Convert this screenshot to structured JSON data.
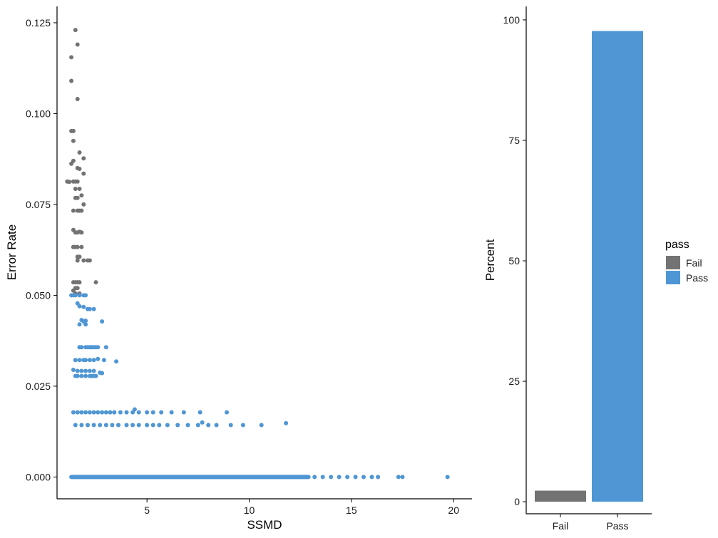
{
  "colors": {
    "fail": "#737373",
    "pass": "#4f96d4",
    "axis": "#000000"
  },
  "chart_data": [
    {
      "type": "scatter",
      "xlabel": "SSMD",
      "ylabel": "Error Rate",
      "xlim": [
        0.6,
        20.9
      ],
      "ylim": [
        -0.006,
        0.1295
      ],
      "x_ticks": [
        5,
        10,
        15,
        20
      ],
      "x_tick_labels": [
        "5",
        "10",
        "15",
        "20"
      ],
      "y_ticks": [
        0.0,
        0.025,
        0.05,
        0.075,
        0.1,
        0.125
      ],
      "y_tick_labels": [
        "0.000",
        "0.025",
        "0.050",
        "0.075",
        "0.100",
        "0.125"
      ],
      "grid": false,
      "series": [
        {
          "name": "Fail",
          "x": [
            1.5,
            1.3,
            1.6,
            1.3,
            1.6,
            1.3,
            1.4,
            1.4,
            1.7,
            1.3,
            1.9,
            1.2,
            1.4,
            1.6,
            1.7,
            1.9,
            1.5,
            1.4,
            1.6,
            1.5,
            1.7,
            1.1,
            1.5,
            1.6,
            1.8,
            1.6,
            1.4,
            1.9,
            1.7,
            1.8,
            1.4,
            1.7,
            1.5,
            1.6,
            1.8,
            1.4,
            1.5,
            1.6,
            1.8,
            1.4,
            1.6,
            1.7,
            1.6,
            1.9,
            2.1,
            2.2,
            1.4,
            1.5,
            1.6,
            1.7,
            1.5,
            1.6,
            2.5,
            1.4,
            1.5,
            1.7
          ],
          "y": [
            0.123,
            0.1155,
            0.119,
            0.109,
            0.104,
            0.0952,
            0.0952,
            0.0925,
            0.0893,
            0.0862,
            0.0877,
            0.0812,
            0.087,
            0.085,
            0.0848,
            0.0835,
            0.0813,
            0.0813,
            0.0813,
            0.0793,
            0.0793,
            0.0813,
            0.0768,
            0.0768,
            0.0775,
            0.0733,
            0.0733,
            0.075,
            0.0733,
            0.0733,
            0.068,
            0.0675,
            0.0673,
            0.0673,
            0.0673,
            0.0633,
            0.0633,
            0.0633,
            0.0633,
            0.0633,
            0.0606,
            0.0606,
            0.0596,
            0.0596,
            0.0596,
            0.0596,
            0.0536,
            0.0536,
            0.0536,
            0.0536,
            0.052,
            0.052,
            0.0536,
            0.0513,
            0.0505,
            0.0505
          ]
        },
        {
          "name": "Pass",
          "x": [
            1.3,
            1.4,
            1.5,
            1.7,
            1.9,
            2.0,
            1.6,
            1.7,
            1.9,
            2.1,
            1.8,
            2.0,
            2.2,
            2.4,
            1.7,
            2.0,
            1.9,
            2.8,
            1.7,
            1.8,
            2.0,
            2.1,
            2.2,
            2.3,
            2.4,
            2.5,
            2.6,
            3.0,
            1.5,
            1.7,
            1.9,
            2.0,
            2.2,
            2.4,
            2.6,
            2.9,
            3.5,
            1.4,
            1.6,
            1.8,
            2.0,
            2.2,
            2.4,
            2.7,
            1.5,
            1.6,
            1.8,
            2.0,
            2.2,
            2.3,
            2.4,
            2.5,
            2.8
          ],
          "y": [
            0.05,
            0.05,
            0.05,
            0.05,
            0.05,
            0.05,
            0.0478,
            0.047,
            0.0468,
            0.0462,
            0.0432,
            0.043,
            0.0462,
            0.0462,
            0.042,
            0.042,
            0.0428,
            0.0428,
            0.0357,
            0.0357,
            0.0357,
            0.0357,
            0.0357,
            0.0357,
            0.0357,
            0.0357,
            0.0357,
            0.0357,
            0.0322,
            0.0322,
            0.0322,
            0.0322,
            0.0322,
            0.0322,
            0.0325,
            0.0322,
            0.0318,
            0.0295,
            0.0292,
            0.0292,
            0.0292,
            0.0292,
            0.0292,
            0.0287,
            0.0278,
            0.0278,
            0.0278,
            0.0278,
            0.0278,
            0.0278,
            0.0278,
            0.0278,
            0.0286
          ],
          "bands": [
            {
              "y": 0.0178,
              "x": [
                1.4,
                1.6,
                1.8,
                2.0,
                2.2,
                2.4,
                2.6,
                2.8,
                3.0,
                3.2,
                3.4,
                3.7,
                4.0,
                4.3,
                4.6,
                5.0,
                5.3,
                5.7,
                6.2,
                6.8,
                7.6,
                8.9
              ],
              "extra": [
                [
                  4.4,
                  0.0186
                ]
              ]
            },
            {
              "y": 0.0143,
              "x": [
                1.5,
                1.8,
                2.1,
                2.4,
                2.7,
                3.0,
                3.3,
                3.6,
                4.0,
                4.3,
                4.6,
                5.0,
                5.3,
                5.6,
                6.0,
                6.5,
                7.0,
                7.5,
                8.0,
                8.4,
                9.1,
                9.7,
                10.6
              ],
              "extra": [
                [
                  11.8,
                  0.0148
                ],
                [
                  7.7,
                  0.015
                ]
              ]
            },
            {
              "y": 0.0,
              "from": 1.3,
              "to": 12.9,
              "x": [
                13.2,
                13.6,
                14.0,
                14.4,
                14.8,
                15.2,
                15.6,
                16.0,
                16.3,
                17.3,
                17.5,
                19.7
              ]
            }
          ]
        }
      ]
    },
    {
      "type": "bar",
      "xlabel": "",
      "ylabel": "Percent",
      "categories": [
        "Fail",
        "Pass"
      ],
      "values": [
        2.3,
        97.7
      ],
      "ylim": [
        -2.5,
        102.8
      ],
      "y_ticks": [
        0,
        25,
        50,
        75,
        100
      ],
      "y_tick_labels": [
        "0",
        "25",
        "50",
        "75",
        "100"
      ],
      "grid": false
    }
  ],
  "legend": {
    "title": "pass",
    "entries": [
      {
        "label": "Fail",
        "color": "#737373"
      },
      {
        "label": "Pass",
        "color": "#4f96d4"
      }
    ],
    "placement": "right"
  }
}
